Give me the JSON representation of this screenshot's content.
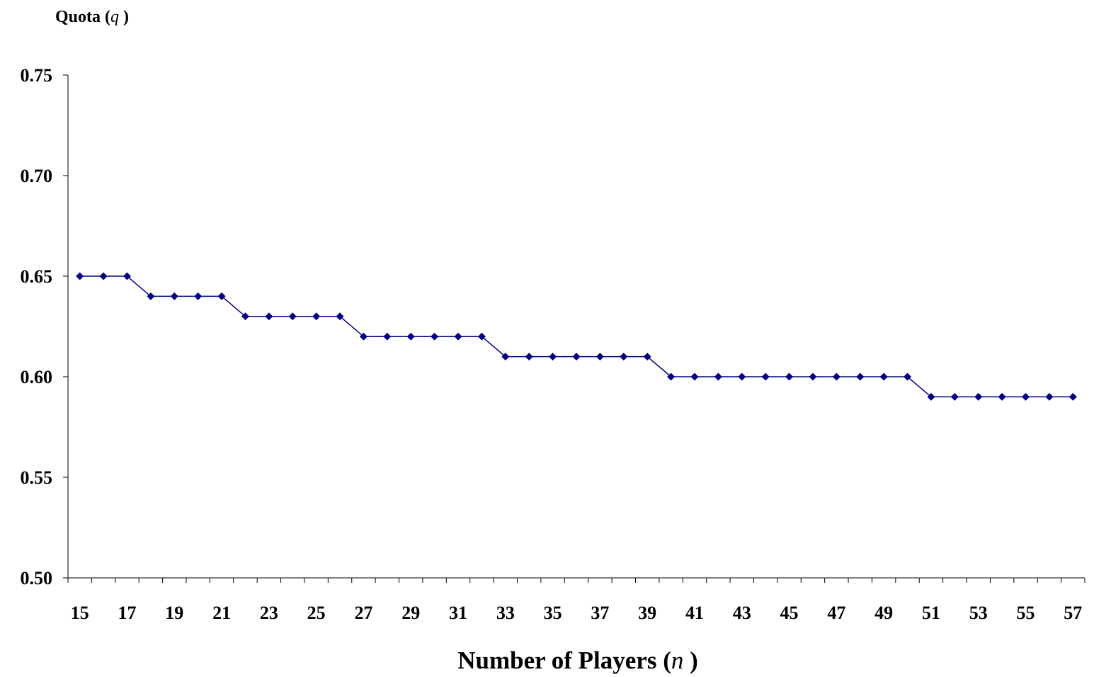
{
  "chart_data": {
    "type": "line",
    "title": "",
    "ylabel": "Quota",
    "ylabel_var": "q",
    "xlabel": "Number of Players",
    "xlabel_var": "n",
    "x": [
      15,
      16,
      17,
      18,
      19,
      20,
      21,
      22,
      23,
      24,
      25,
      26,
      27,
      28,
      29,
      30,
      31,
      32,
      33,
      34,
      35,
      36,
      37,
      38,
      39,
      40,
      41,
      42,
      43,
      44,
      45,
      46,
      47,
      48,
      49,
      50,
      51,
      52,
      53,
      54,
      55,
      56,
      57
    ],
    "series": [
      {
        "values": [
          0.65,
          0.65,
          0.65,
          0.64,
          0.64,
          0.64,
          0.64,
          0.63,
          0.63,
          0.63,
          0.63,
          0.63,
          0.62,
          0.62,
          0.62,
          0.62,
          0.62,
          0.62,
          0.61,
          0.61,
          0.61,
          0.61,
          0.61,
          0.61,
          0.61,
          0.6,
          0.6,
          0.6,
          0.6,
          0.6,
          0.6,
          0.6,
          0.6,
          0.6,
          0.6,
          0.6,
          0.59,
          0.59,
          0.59,
          0.59,
          0.59,
          0.59,
          0.59
        ],
        "color": "#000080",
        "marker": "diamond"
      }
    ],
    "xlim": [
      15,
      57
    ],
    "ylim": [
      0.5,
      0.75
    ],
    "yticks": [
      "0.50",
      "0.55",
      "0.60",
      "0.65",
      "0.70",
      "0.75"
    ],
    "xtick_labels": [
      "15",
      "17",
      "19",
      "21",
      "23",
      "25",
      "27",
      "29",
      "31",
      "33",
      "35",
      "37",
      "39",
      "41",
      "43",
      "45",
      "47",
      "49",
      "51",
      "53",
      "55",
      "57"
    ],
    "grid": false,
    "legend": "none"
  }
}
